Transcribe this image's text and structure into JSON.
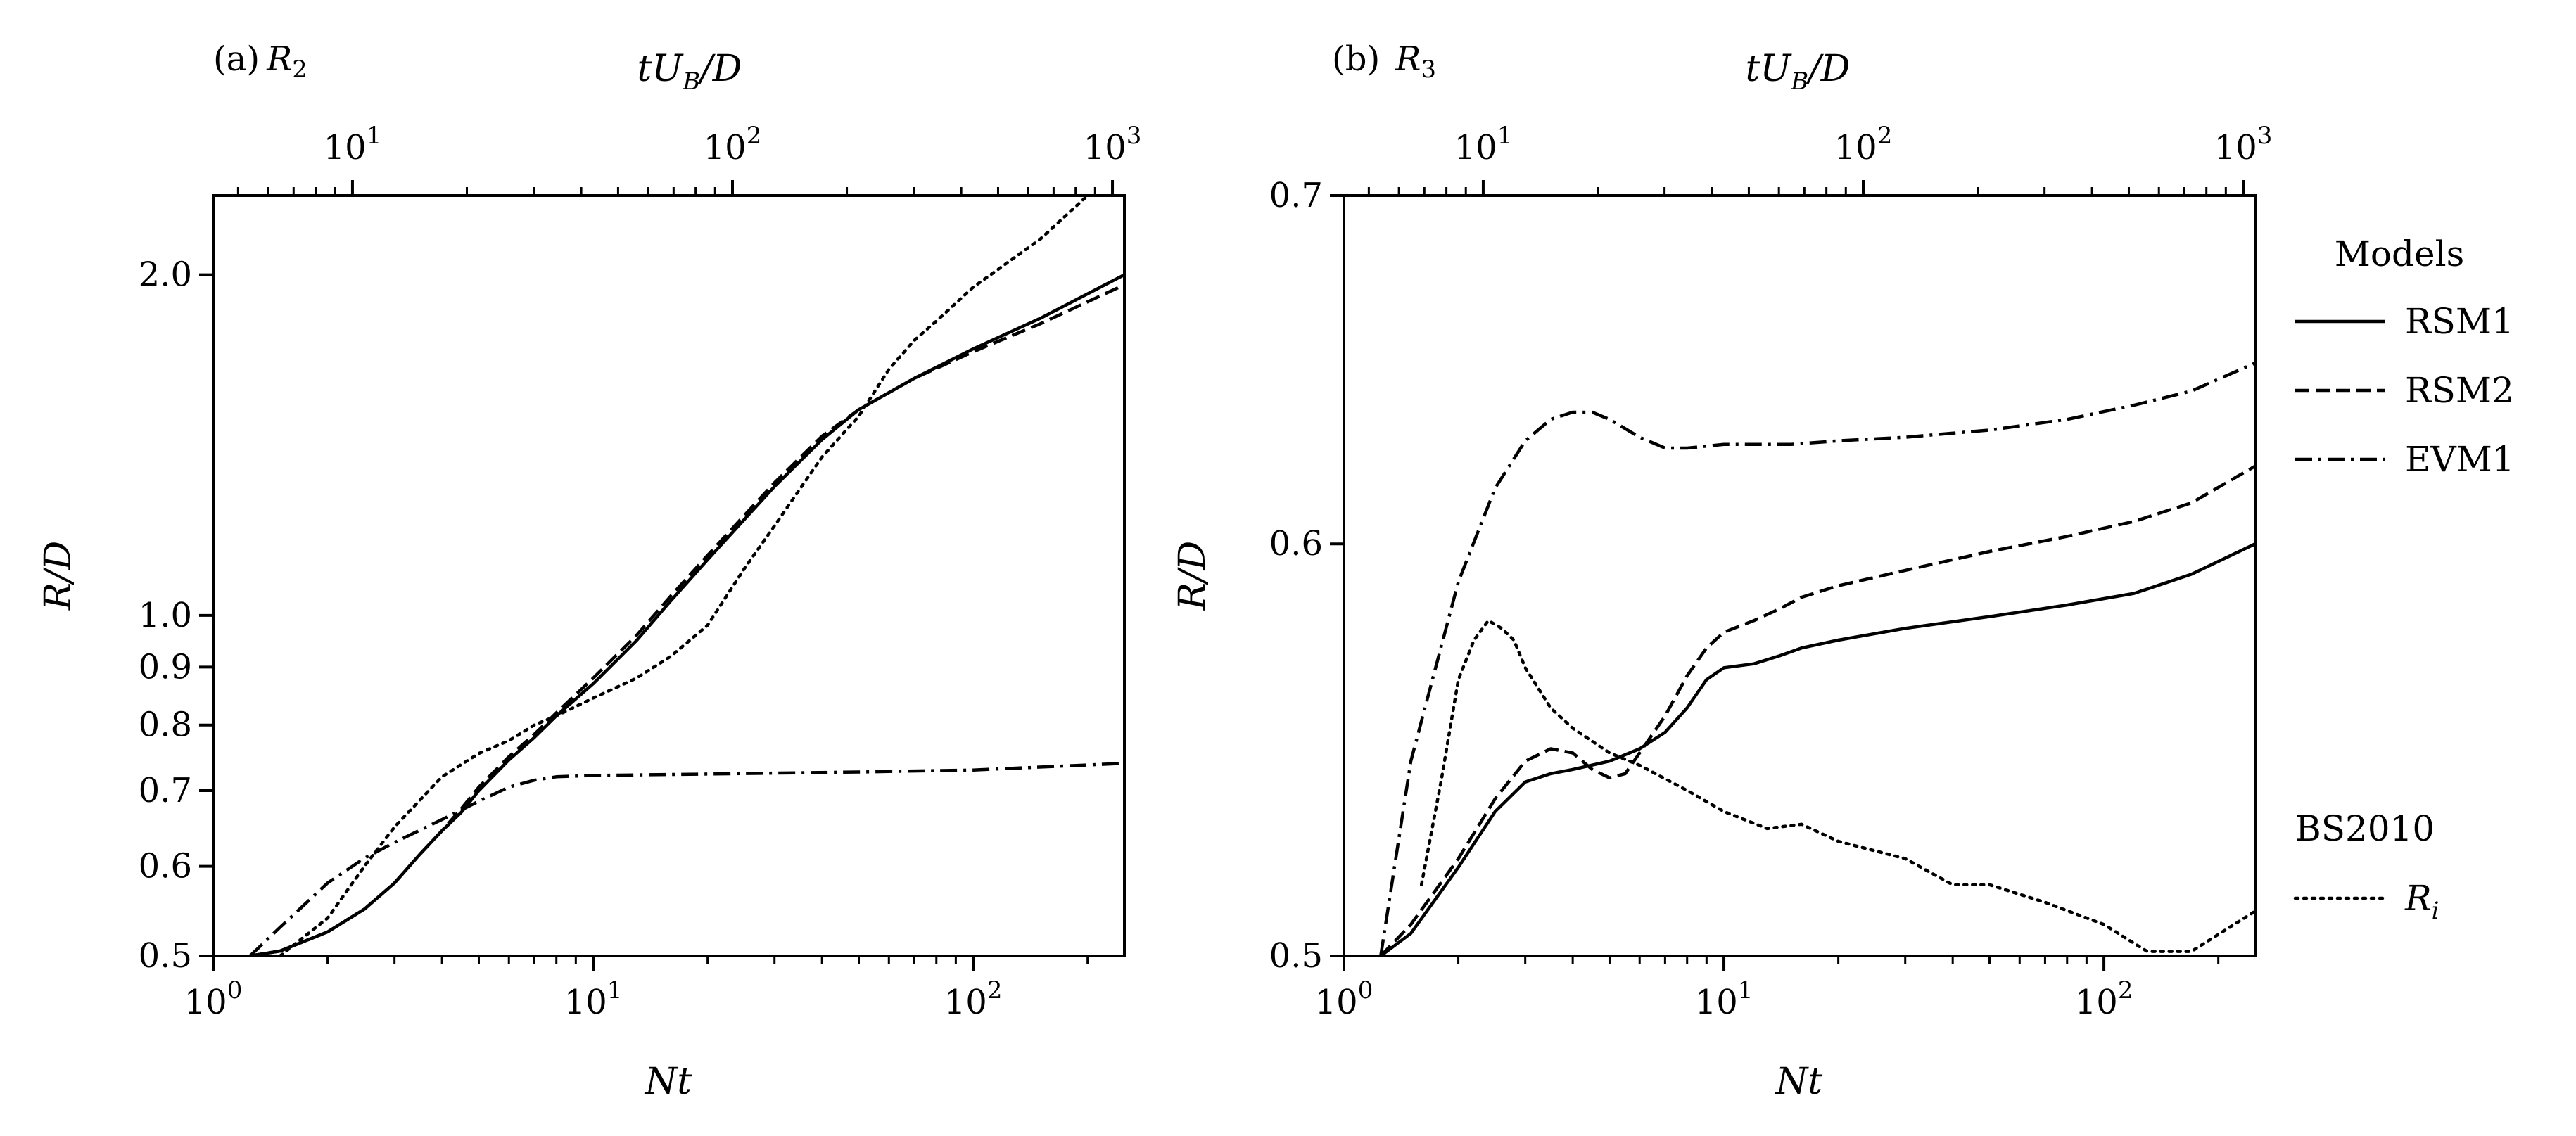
{
  "chart_data": [
    {
      "panel_label": "(a)",
      "panel_symbol": "R",
      "panel_symbol_sub": "2",
      "type": "line",
      "xlabel": "Nt",
      "xscale": "log",
      "xlim": [
        1,
        250
      ],
      "xticks": [
        {
          "base": "10",
          "exp": "0",
          "value": 1
        },
        {
          "base": "10",
          "exp": "1",
          "value": 10
        },
        {
          "base": "10",
          "exp": "2",
          "value": 100
        }
      ],
      "ylabel": "R/D",
      "yscale": "log",
      "ylim": [
        0.5,
        2.35
      ],
      "yticks": [
        {
          "label": "0.5",
          "value": 0.5
        },
        {
          "label": "0.6",
          "value": 0.6
        },
        {
          "label": "0.7",
          "value": 0.7
        },
        {
          "label": "0.8",
          "value": 0.8
        },
        {
          "label": "0.9",
          "value": 0.9
        },
        {
          "label": "1.0",
          "value": 1.0
        },
        {
          "label": "2.0",
          "value": 2.0
        }
      ],
      "top_axis": {
        "label_main": "tU",
        "label_sub": "B",
        "label_tail": "/D",
        "ticks": [
          {
            "base": "10",
            "exp": "1",
            "value": 10
          },
          {
            "base": "10",
            "exp": "2",
            "value": 100
          },
          {
            "base": "10",
            "exp": "3",
            "value": 1000
          }
        ],
        "xlim": [
          4.3,
          1075
        ]
      },
      "series": [
        {
          "name": "RSM1",
          "style": "solid",
          "x": [
            1.25,
            1.5,
            2,
            2.5,
            3,
            3.5,
            4,
            4.5,
            5,
            6,
            7,
            8,
            10,
            13,
            16,
            20,
            30,
            40,
            50,
            70,
            100,
            150,
            250
          ],
          "y": [
            0.5,
            0.505,
            0.525,
            0.55,
            0.58,
            0.615,
            0.645,
            0.67,
            0.7,
            0.745,
            0.78,
            0.815,
            0.87,
            0.95,
            1.03,
            1.12,
            1.3,
            1.43,
            1.52,
            1.62,
            1.72,
            1.83,
            2.0
          ]
        },
        {
          "name": "RSM2",
          "style": "dashed",
          "x": [
            1.25,
            1.5,
            2,
            2.5,
            3,
            3.5,
            4,
            4.5,
            5,
            6,
            7,
            8,
            10,
            13,
            16,
            20,
            30,
            40,
            50,
            70,
            100,
            150,
            250
          ],
          "y": [
            0.5,
            0.505,
            0.525,
            0.55,
            0.58,
            0.615,
            0.645,
            0.675,
            0.705,
            0.75,
            0.785,
            0.82,
            0.88,
            0.96,
            1.04,
            1.13,
            1.31,
            1.44,
            1.52,
            1.62,
            1.71,
            1.81,
            1.96
          ]
        },
        {
          "name": "EVM1",
          "style": "dashdot",
          "x": [
            1.25,
            1.5,
            2,
            2.5,
            3,
            4,
            5,
            6,
            7,
            8,
            10,
            20,
            50,
            100,
            250
          ],
          "y": [
            0.5,
            0.53,
            0.58,
            0.61,
            0.63,
            0.66,
            0.685,
            0.705,
            0.715,
            0.72,
            0.722,
            0.724,
            0.727,
            0.73,
            0.74
          ]
        },
        {
          "name": "R_i",
          "style": "dotted",
          "x": [
            1.5,
            2,
            2.5,
            3,
            4,
            5,
            6,
            7,
            8,
            10,
            13,
            16,
            20,
            25,
            30,
            40,
            50,
            60,
            70,
            80,
            100,
            150,
            200
          ],
          "y": [
            0.5,
            0.54,
            0.6,
            0.65,
            0.72,
            0.755,
            0.775,
            0.8,
            0.815,
            0.845,
            0.88,
            0.92,
            0.98,
            1.1,
            1.2,
            1.38,
            1.5,
            1.65,
            1.75,
            1.82,
            1.95,
            2.15,
            2.35
          ]
        }
      ]
    },
    {
      "panel_label": "(b)",
      "panel_symbol": "R",
      "panel_symbol_sub": "3",
      "type": "line",
      "xlabel": "Nt",
      "xscale": "log",
      "xlim": [
        1,
        250
      ],
      "xticks": [
        {
          "base": "10",
          "exp": "0",
          "value": 1
        },
        {
          "base": "10",
          "exp": "1",
          "value": 10
        },
        {
          "base": "10",
          "exp": "2",
          "value": 100
        }
      ],
      "ylabel": "R/D",
      "yscale": "log",
      "ylim": [
        0.5,
        0.7
      ],
      "yticks": [
        {
          "label": "0.5",
          "value": 0.5
        },
        {
          "label": "0.6",
          "value": 0.6
        },
        {
          "label": "0.7",
          "value": 0.7
        }
      ],
      "top_axis": {
        "label_main": "tU",
        "label_sub": "B",
        "label_tail": "/D",
        "ticks": [
          {
            "base": "10",
            "exp": "1",
            "value": 10
          },
          {
            "base": "10",
            "exp": "2",
            "value": 100
          },
          {
            "base": "10",
            "exp": "3",
            "value": 1000
          }
        ],
        "xlim": [
          4.3,
          1075
        ]
      },
      "series": [
        {
          "name": "RSM1",
          "style": "solid",
          "x": [
            1.25,
            1.5,
            2,
            2.5,
            3,
            3.5,
            4,
            5,
            6,
            7,
            8,
            9,
            10,
            12,
            14,
            16,
            20,
            30,
            50,
            80,
            120,
            170,
            250
          ],
          "y": [
            0.5,
            0.505,
            0.52,
            0.533,
            0.54,
            0.542,
            0.543,
            0.545,
            0.548,
            0.552,
            0.558,
            0.565,
            0.568,
            0.569,
            0.571,
            0.573,
            0.575,
            0.578,
            0.581,
            0.584,
            0.587,
            0.592,
            0.6
          ]
        },
        {
          "name": "RSM2",
          "style": "dashed",
          "x": [
            1.25,
            1.5,
            2,
            2.5,
            3,
            3.5,
            4,
            4.5,
            5,
            5.5,
            6,
            7,
            8,
            9,
            10,
            12,
            14,
            16,
            20,
            30,
            50,
            80,
            120,
            170,
            250
          ],
          "y": [
            0.5,
            0.507,
            0.522,
            0.536,
            0.545,
            0.548,
            0.547,
            0.543,
            0.541,
            0.542,
            0.547,
            0.556,
            0.566,
            0.573,
            0.577,
            0.58,
            0.583,
            0.586,
            0.589,
            0.593,
            0.598,
            0.602,
            0.606,
            0.611,
            0.621
          ]
        },
        {
          "name": "EVM1",
          "style": "dashdot",
          "x": [
            1.25,
            1.5,
            2,
            2.5,
            3,
            3.5,
            4,
            4.5,
            5,
            6,
            7,
            8,
            10,
            15,
            20,
            30,
            50,
            80,
            120,
            170,
            250
          ],
          "y": [
            0.5,
            0.545,
            0.59,
            0.615,
            0.628,
            0.634,
            0.636,
            0.636,
            0.634,
            0.629,
            0.626,
            0.626,
            0.627,
            0.627,
            0.628,
            0.629,
            0.631,
            0.634,
            0.638,
            0.642,
            0.65
          ]
        },
        {
          "name": "R_i",
          "style": "dotted",
          "x": [
            1.6,
            1.8,
            2,
            2.2,
            2.4,
            2.6,
            2.8,
            3,
            3.5,
            4,
            5,
            6,
            8,
            10,
            13,
            16,
            20,
            30,
            40,
            50,
            70,
            100,
            130,
            170,
            250
          ],
          "y": [
            0.516,
            0.54,
            0.565,
            0.575,
            0.58,
            0.578,
            0.575,
            0.568,
            0.558,
            0.553,
            0.547,
            0.544,
            0.538,
            0.533,
            0.529,
            0.53,
            0.526,
            0.522,
            0.516,
            0.516,
            0.512,
            0.507,
            0.501,
            0.501,
            0.51
          ]
        }
      ]
    }
  ],
  "legend": {
    "title": "Models",
    "entries": [
      {
        "label": "RSM1",
        "style": "solid"
      },
      {
        "label": "RSM2",
        "style": "dashed"
      },
      {
        "label": "EVM1",
        "style": "dashdot"
      }
    ],
    "ref_title": "BS2010",
    "ref_entries": [
      {
        "label_main": "R",
        "label_sub": "i",
        "style": "dotted"
      }
    ]
  },
  "colors": {
    "line": "#000000",
    "background": "#ffffff"
  }
}
